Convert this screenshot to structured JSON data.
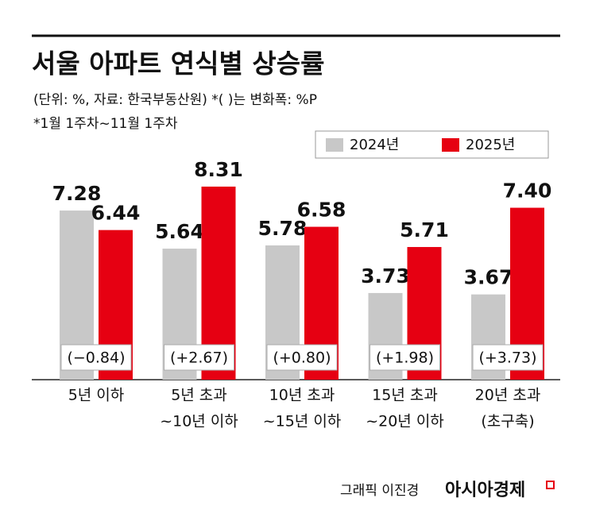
{
  "chart_data": {
    "type": "bar",
    "title": "서울 아파트 연식별 상승률",
    "subtitle": "(단위: %, 자료: 한국부동산원)  *(  )는 변화폭: %P",
    "note": "*1월 1주차~11월 1주차",
    "categories": [
      [
        "5년 이하"
      ],
      [
        "5년 초과",
        "~10년 이하"
      ],
      [
        "10년 초과",
        "~15년 이하"
      ],
      [
        "15년 초과",
        "~20년 이하"
      ],
      [
        "20년 초과",
        "(초구축)"
      ]
    ],
    "series": [
      {
        "name": "2024년",
        "color": "#c8c8c8",
        "values": [
          7.28,
          5.64,
          5.78,
          3.73,
          3.67
        ],
        "value_labels": [
          "7.28",
          "5.64",
          "5.78",
          "3.73",
          "3.67"
        ]
      },
      {
        "name": "2025년",
        "color": "#e60012",
        "values": [
          6.44,
          8.31,
          6.58,
          5.71,
          7.4
        ],
        "value_labels": [
          "6.44",
          "8.31",
          "6.58",
          "5.71",
          "7.40"
        ]
      }
    ],
    "annotations": [
      "(−0.84)",
      "(+2.67)",
      "(+0.80)",
      "(+1.98)",
      "(+3.73)"
    ],
    "credit": {
      "author": "그래픽 이진경",
      "brand": "아시아경제"
    }
  }
}
